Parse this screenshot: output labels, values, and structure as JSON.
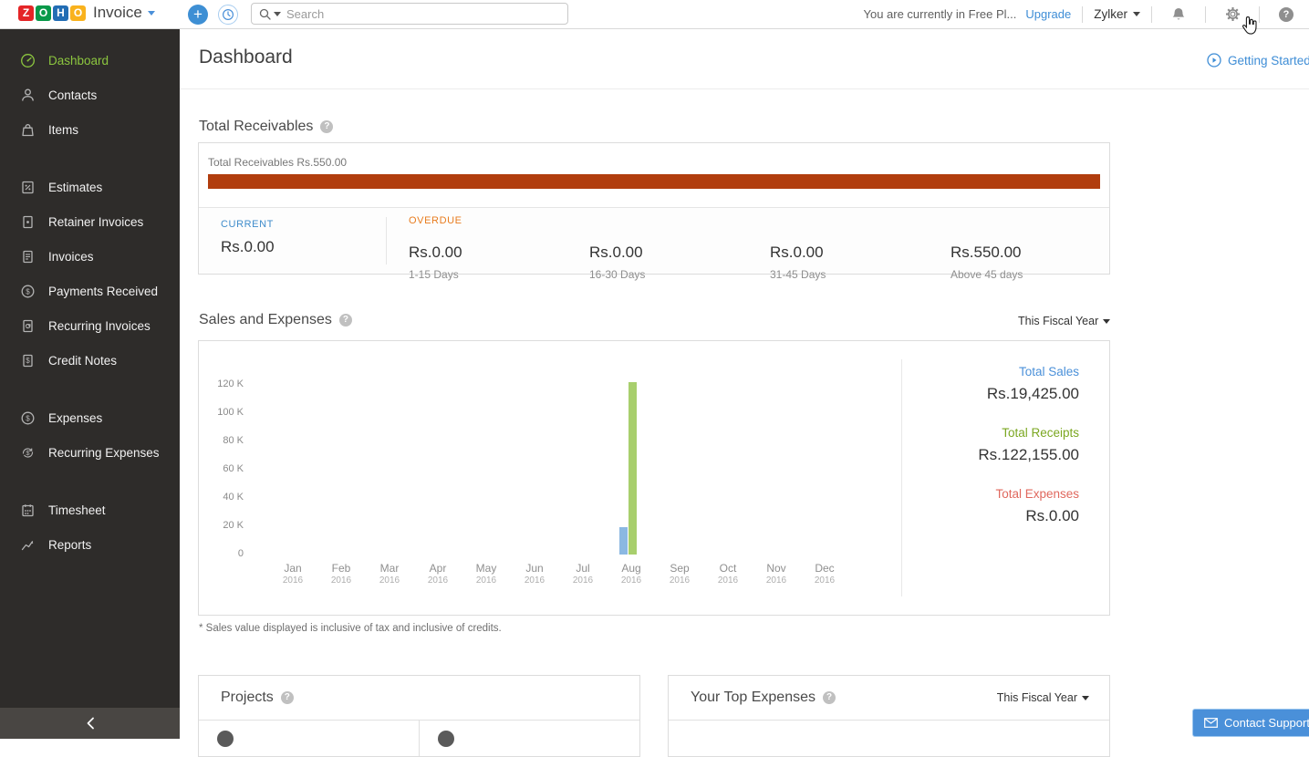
{
  "topbar": {
    "logo_letters": [
      "Z",
      "O",
      "H",
      "O"
    ],
    "logo_colors": [
      "#e42527",
      "#089949",
      "#226db4",
      "#f9b21d"
    ],
    "product_name": "Invoice",
    "search_placeholder": "Search",
    "plan_text": "You are currently in Free Pl...",
    "upgrade_label": "Upgrade",
    "org_name": "Zylker"
  },
  "sidebar": {
    "items": [
      {
        "label": "Dashboard",
        "active": true
      },
      {
        "label": "Contacts"
      },
      {
        "label": "Items"
      },
      {
        "label": "Estimates"
      },
      {
        "label": "Retainer Invoices"
      },
      {
        "label": "Invoices"
      },
      {
        "label": "Payments Received"
      },
      {
        "label": "Recurring Invoices"
      },
      {
        "label": "Credit Notes"
      },
      {
        "label": "Expenses"
      },
      {
        "label": "Recurring Expenses"
      },
      {
        "label": "Timesheet"
      },
      {
        "label": "Reports"
      }
    ]
  },
  "page": {
    "title": "Dashboard",
    "getting_started_label": "Getting Started"
  },
  "receivables": {
    "section_title": "Total Receivables",
    "summary_text": "Total Receivables Rs.550.00",
    "bar_color": "#b13d0e",
    "current_label": "CURRENT",
    "current_value": "Rs.0.00",
    "overdue_label": "OVERDUE",
    "overdue_buckets": [
      {
        "value": "Rs.0.00",
        "range": "1-15 Days"
      },
      {
        "value": "Rs.0.00",
        "range": "16-30 Days"
      },
      {
        "value": "Rs.0.00",
        "range": "31-45 Days"
      },
      {
        "value": "Rs.550.00",
        "range": "Above 45 days"
      }
    ]
  },
  "sales_expenses": {
    "section_title": "Sales and Expenses",
    "period_label": "This Fiscal Year",
    "totals": [
      {
        "label": "Total Sales",
        "value": "Rs.19,425.00",
        "color": "#4a90d9"
      },
      {
        "label": "Total Receipts",
        "value": "Rs.122,155.00",
        "color": "#7ba721"
      },
      {
        "label": "Total Expenses",
        "value": "Rs.0.00",
        "color": "#e0685e"
      }
    ],
    "footnote": "* Sales value displayed is inclusive of tax and inclusive of credits."
  },
  "chart_data": {
    "type": "bar",
    "title": "Sales and Expenses",
    "months": [
      "Jan",
      "Feb",
      "Mar",
      "Apr",
      "May",
      "Jun",
      "Jul",
      "Aug",
      "Sep",
      "Oct",
      "Nov",
      "Dec"
    ],
    "year": "2016",
    "ylim": [
      0,
      120000
    ],
    "yticks": [
      "0",
      "20 K",
      "40 K",
      "60 K",
      "80 K",
      "100 K",
      "120 K"
    ],
    "grid": false,
    "legend_position": "right-panel",
    "series": [
      {
        "name": "Total Sales",
        "color": "#8bb8e2",
        "values": [
          0,
          0,
          0,
          0,
          0,
          0,
          0,
          19425,
          0,
          0,
          0,
          0
        ]
      },
      {
        "name": "Total Receipts",
        "color": "#a8cf6d",
        "values": [
          0,
          0,
          0,
          0,
          0,
          0,
          0,
          122155,
          0,
          0,
          0,
          0
        ]
      },
      {
        "name": "Total Expenses",
        "color": "#e0685e",
        "values": [
          0,
          0,
          0,
          0,
          0,
          0,
          0,
          0,
          0,
          0,
          0,
          0
        ]
      }
    ]
  },
  "projects": {
    "section_title": "Projects"
  },
  "top_expenses": {
    "section_title": "Your Top Expenses",
    "period_label": "This Fiscal Year"
  },
  "support": {
    "button_label": "Contact Support"
  }
}
